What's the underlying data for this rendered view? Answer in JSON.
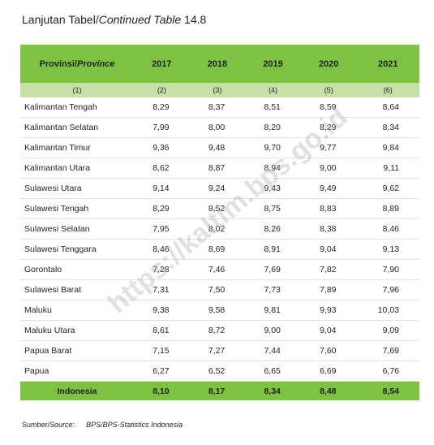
{
  "header": {
    "title_parts": [
      "Lanjutan Tabel/",
      "Continued Table",
      " 14.8"
    ]
  },
  "table": {
    "header_parts": [
      "Provinsi/",
      "Province"
    ],
    "years": [
      "2017",
      "2018",
      "2019",
      "2020",
      "2021"
    ],
    "column_numbers": [
      "(1)",
      "(2)",
      "(3)",
      "(4)",
      "(5)",
      "(6)"
    ],
    "rows": [
      [
        "Kalimantan Tengah",
        "8,29",
        "8,37",
        "8,51",
        "8,59",
        "8,64"
      ],
      [
        "Kalimantan Selatan",
        "7,99",
        "8,00",
        "8,20",
        "8,29",
        "8,34"
      ],
      [
        "Kalimantan Timur",
        "9,36",
        "9,48",
        "9,70",
        "9,77",
        "9,84"
      ],
      [
        "Kalimantan Utara",
        "8,62",
        "8,87",
        "8,94",
        "9,00",
        "9,11"
      ],
      [
        "Sulawesi Utara",
        "9,14",
        "9,24",
        "9,43",
        "9,49",
        "9,62"
      ],
      [
        "Sulawesi Tengah",
        "8,29",
        "8,52",
        "8,75",
        "8,83",
        "8,89"
      ],
      [
        "Sulawesi Selatan",
        "7,95",
        "8,02",
        "8,26",
        "8,38",
        "8,46"
      ],
      [
        "Sulawesi Tenggara",
        "8,46",
        "8,69",
        "8,91",
        "9,04",
        "9,13"
      ],
      [
        "Gorontalo",
        "7,28",
        "7,46",
        "7,69",
        "7,82",
        "7,90"
      ],
      [
        "Sulawesi Barat",
        "7,31",
        "7,50",
        "7,73",
        "7,89",
        "7,96"
      ],
      [
        "Maluku",
        "9,38",
        "9,58",
        "9,81",
        "9,93",
        "10,03"
      ],
      [
        "Maluku Utara",
        "8,61",
        "8,72",
        "9,00",
        "9,04",
        "9,09"
      ],
      [
        "Papua Barat",
        "7,15",
        "7,27",
        "7,44",
        "7,60",
        "7,69"
      ],
      [
        "Papua",
        "6,27",
        "6,52",
        "6,65",
        "6,69",
        "6,76"
      ]
    ],
    "total": [
      "Indonesia",
      "8,10",
      "8,17",
      "8,34",
      "8,48",
      "8,54"
    ]
  },
  "source": {
    "label_parts": [
      "Sumber/",
      "Source",
      ":"
    ],
    "text": "BPS/BPS-Statistics Indonesia"
  },
  "watermark": "https://kaltim.bps.go.id"
}
